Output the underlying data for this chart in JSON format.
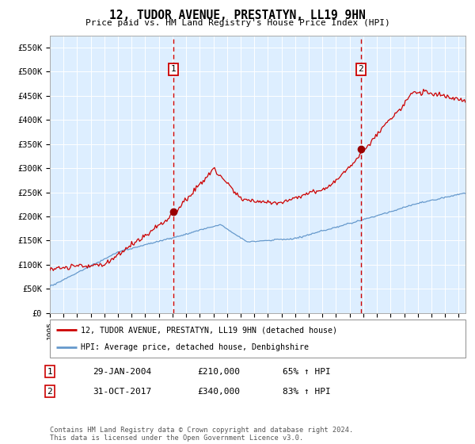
{
  "title": "12, TUDOR AVENUE, PRESTATYN, LL19 9HN",
  "subtitle": "Price paid vs. HM Land Registry's House Price Index (HPI)",
  "legend_line1": "12, TUDOR AVENUE, PRESTATYN, LL19 9HN (detached house)",
  "legend_line2": "HPI: Average price, detached house, Denbighshire",
  "sale1_label": "1",
  "sale1_date": "29-JAN-2004",
  "sale1_price": "£210,000",
  "sale1_hpi": "65% ↑ HPI",
  "sale1_year": 2004.08,
  "sale1_value": 210000,
  "sale2_label": "2",
  "sale2_date": "31-OCT-2017",
  "sale2_price": "£340,000",
  "sale2_hpi": "83% ↑ HPI",
  "sale2_year": 2017.83,
  "sale2_value": 340000,
  "ylim": [
    0,
    575000
  ],
  "yticks": [
    0,
    50000,
    100000,
    150000,
    200000,
    250000,
    300000,
    350000,
    400000,
    450000,
    500000,
    550000
  ],
  "ytick_labels": [
    "£0",
    "£50K",
    "£100K",
    "£150K",
    "£200K",
    "£250K",
    "£300K",
    "£350K",
    "£400K",
    "£450K",
    "£500K",
    "£550K"
  ],
  "xlim_start": 1995.0,
  "xlim_end": 2025.5,
  "chart_bg_color": "#ddeeff",
  "red_line_color": "#cc0000",
  "blue_line_color": "#6699cc",
  "grid_color": "#ffffff",
  "sale_dot_color": "#990000",
  "footnote": "Contains HM Land Registry data © Crown copyright and database right 2024.\nThis data is licensed under the Open Government Licence v3.0."
}
